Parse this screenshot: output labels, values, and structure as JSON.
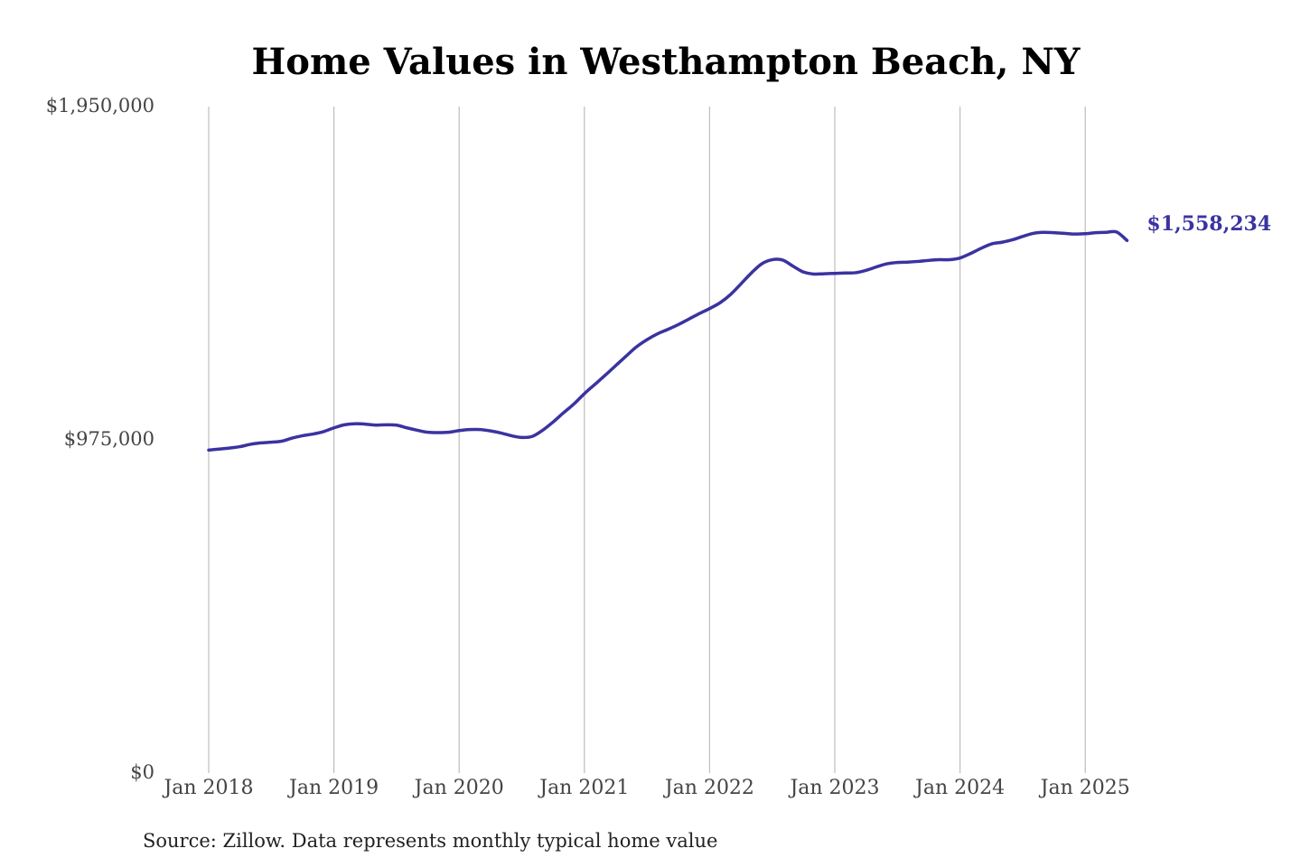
{
  "colors": {
    "series": "#3a33a0",
    "grid": "#bdbdbd",
    "title": "#000000",
    "tick": "#444444"
  },
  "chart_data": {
    "type": "line",
    "title": "Home Values in Westhampton Beach, NY",
    "xlabel": "",
    "ylabel": "",
    "ylim": [
      0,
      1950000
    ],
    "y_ticks": [
      {
        "value": 0,
        "label": "$0"
      },
      {
        "value": 975000,
        "label": "$975,000"
      },
      {
        "value": 1950000,
        "label": "$1,950,000"
      }
    ],
    "x_ticks": [
      {
        "date": "2018-01",
        "label": "Jan 2018"
      },
      {
        "date": "2019-01",
        "label": "Jan 2019"
      },
      {
        "date": "2020-01",
        "label": "Jan 2020"
      },
      {
        "date": "2021-01",
        "label": "Jan 2021"
      },
      {
        "date": "2022-01",
        "label": "Jan 2022"
      },
      {
        "date": "2023-01",
        "label": "Jan 2023"
      },
      {
        "date": "2024-01",
        "label": "Jan 2024"
      },
      {
        "date": "2025-01",
        "label": "Jan 2025"
      }
    ],
    "grid": {
      "vertical": true,
      "horizontal": false
    },
    "legend": "none",
    "end_label": "$1,558,234",
    "series": [
      {
        "x": [
          "2018-01",
          "2018-02",
          "2018-03",
          "2018-04",
          "2018-05",
          "2018-06",
          "2018-07",
          "2018-08",
          "2018-09",
          "2018-10",
          "2018-11",
          "2018-12",
          "2019-01",
          "2019-02",
          "2019-03",
          "2019-04",
          "2019-05",
          "2019-06",
          "2019-07",
          "2019-08",
          "2019-09",
          "2019-10",
          "2019-11",
          "2019-12",
          "2020-01",
          "2020-02",
          "2020-03",
          "2020-04",
          "2020-05",
          "2020-06",
          "2020-07",
          "2020-08",
          "2020-09",
          "2020-10",
          "2020-11",
          "2020-12",
          "2021-01",
          "2021-02",
          "2021-03",
          "2021-04",
          "2021-05",
          "2021-06",
          "2021-07",
          "2021-08",
          "2021-09",
          "2021-10",
          "2021-11",
          "2021-12",
          "2022-01",
          "2022-02",
          "2022-03",
          "2022-04",
          "2022-05",
          "2022-06",
          "2022-07",
          "2022-08",
          "2022-09",
          "2022-10",
          "2022-11",
          "2022-12",
          "2023-01",
          "2023-02",
          "2023-03",
          "2023-04",
          "2023-05",
          "2023-06",
          "2023-07",
          "2023-08",
          "2023-09",
          "2023-10",
          "2023-11",
          "2023-12",
          "2024-01",
          "2024-02",
          "2024-03",
          "2024-04",
          "2024-05",
          "2024-06",
          "2024-07",
          "2024-08",
          "2024-09",
          "2024-10",
          "2024-11",
          "2024-12",
          "2025-01",
          "2025-02",
          "2025-03",
          "2025-04",
          "2025-05"
        ],
        "values": [
          945000,
          948000,
          951000,
          955000,
          962000,
          966000,
          968000,
          971000,
          980000,
          987000,
          992000,
          999000,
          1010000,
          1019000,
          1022000,
          1021000,
          1018000,
          1019000,
          1018000,
          1010000,
          1003000,
          997000,
          996000,
          997000,
          1002000,
          1005000,
          1005000,
          1001000,
          995000,
          987000,
          982000,
          985000,
          1003000,
          1027000,
          1054000,
          1080000,
          1110000,
          1137000,
          1164000,
          1192000,
          1220000,
          1247000,
          1268000,
          1285000,
          1298000,
          1312000,
          1328000,
          1344000,
          1359000,
          1376000,
          1400000,
          1431000,
          1463000,
          1490000,
          1502000,
          1501000,
          1483000,
          1466000,
          1460000,
          1461000,
          1462000,
          1463000,
          1464000,
          1471000,
          1481000,
          1490000,
          1494000,
          1495000,
          1497000,
          1500000,
          1502000,
          1502000,
          1507000,
          1520000,
          1535000,
          1548000,
          1553000,
          1560000,
          1570000,
          1579000,
          1582000,
          1581000,
          1579000,
          1577000,
          1578000,
          1581000,
          1582000,
          1583000,
          1558234
        ]
      }
    ]
  },
  "source_note": "Source: Zillow. Data represents monthly typical home value"
}
